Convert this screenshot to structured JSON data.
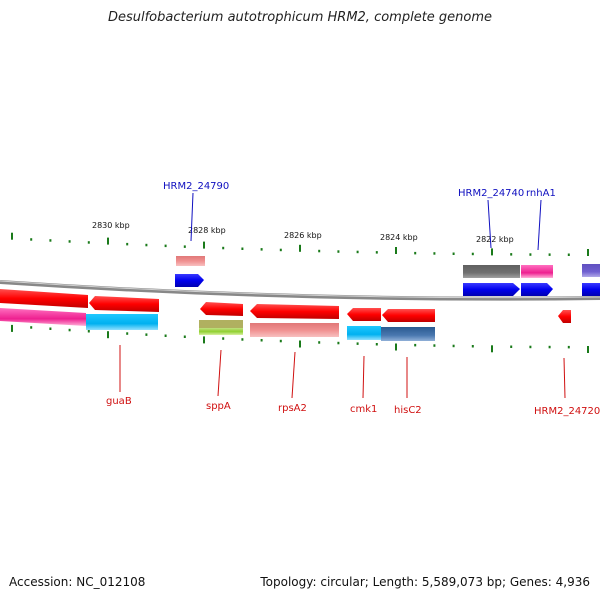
{
  "title": "Desulfobacterium autotrophicum HRM2, complete genome",
  "footer": {
    "accession": "Accession: NC_012108",
    "topology": "Topology: circular; Length: 5,589,073 bp; Genes: 4,936"
  },
  "scale_labels": [
    "2830 kbp",
    "2828 kbp",
    "2826 kbp",
    "2824 kbp",
    "2822 kbp"
  ],
  "genes_top": [
    {
      "name": "HRM2_24790",
      "color": "#1010c0"
    },
    {
      "name": "HRM2_24740",
      "color": "#1010c0"
    },
    {
      "name": "rnhA1",
      "color": "#1010c0"
    }
  ],
  "genes_bottom": [
    {
      "name": "guaB",
      "color": "#d01010"
    },
    {
      "name": "sppA",
      "color": "#d01010"
    },
    {
      "name": "rpsA2",
      "color": "#d01010"
    },
    {
      "name": "cmk1",
      "color": "#d01010"
    },
    {
      "name": "hisC2",
      "color": "#d01010"
    },
    {
      "name": "HRM2_24720",
      "color": "#d01010"
    }
  ],
  "colors": {
    "forward": "#0000ee",
    "reverse": "#ee0000",
    "backbone": "#888888",
    "tick": "#1a7a1a"
  }
}
